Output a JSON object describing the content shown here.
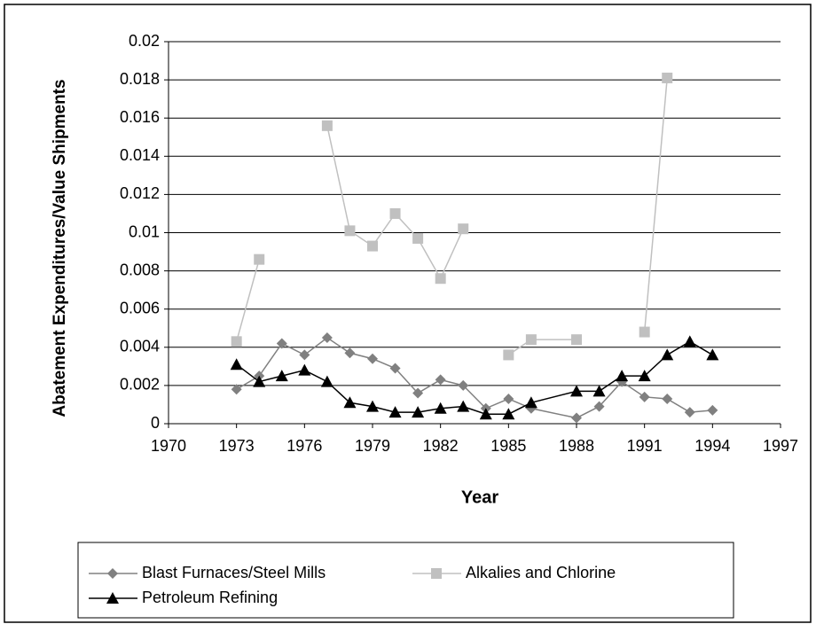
{
  "chart_data": {
    "type": "line",
    "x_label": "Year",
    "y_label": "Abatement Expenditures/Value Shipments",
    "xlim": [
      1970,
      1997
    ],
    "xticks": [
      1970,
      1973,
      1976,
      1979,
      1982,
      1985,
      1988,
      1991,
      1994,
      1997
    ],
    "ylim": [
      0,
      0.02
    ],
    "yticks": [
      0,
      0.002,
      0.004,
      0.006,
      0.008,
      0.01,
      0.012,
      0.014,
      0.016,
      0.018,
      0.02
    ],
    "grid": true,
    "legend": "bottom",
    "series": [
      {
        "name": "Blast Furnaces/Steel Mills",
        "color": "#808080",
        "marker": "diamond",
        "x": [
          1973,
          1974,
          1975,
          1976,
          1977,
          1978,
          1979,
          1980,
          1981,
          1982,
          1983,
          1984,
          1985,
          1986,
          1988,
          1989,
          1990,
          1991,
          1992,
          1993,
          1994
        ],
        "values": [
          0.0018,
          0.0025,
          0.0042,
          0.0036,
          0.0045,
          0.0037,
          0.0034,
          0.0029,
          0.0016,
          0.0023,
          0.002,
          0.0008,
          0.0013,
          0.0008,
          0.0003,
          0.0009,
          0.0022,
          0.0014,
          0.0013,
          0.0006,
          0.0007
        ]
      },
      {
        "name": "Alkalies and Chlorine",
        "color": "#c0c0c0",
        "marker": "square",
        "x": [
          1973,
          1974,
          1975,
          1977,
          1978,
          1979,
          1980,
          1981,
          1982,
          1983,
          1984,
          1985,
          1986,
          1988,
          1990,
          1991,
          1992
        ],
        "values": [
          0.0043,
          0.0086,
          null,
          0.0156,
          0.0101,
          0.0093,
          0.011,
          0.0097,
          0.0076,
          0.0102,
          null,
          0.0036,
          0.0044,
          0.0044,
          null,
          0.0048,
          0.0181
        ]
      },
      {
        "name": "Petroleum Refining",
        "color": "#000000",
        "marker": "triangle",
        "x": [
          1973,
          1974,
          1975,
          1976,
          1977,
          1978,
          1979,
          1980,
          1981,
          1982,
          1983,
          1984,
          1985,
          1986,
          1988,
          1989,
          1990,
          1991,
          1992,
          1993,
          1994
        ],
        "values": [
          0.0031,
          0.0022,
          0.0025,
          0.0028,
          0.0022,
          0.0011,
          0.0009,
          0.0006,
          0.0006,
          0.0008,
          0.0009,
          0.0005,
          0.0005,
          0.0011,
          0.0017,
          0.0017,
          0.0025,
          0.0025,
          0.0036,
          0.0043,
          0.0036
        ]
      }
    ]
  }
}
